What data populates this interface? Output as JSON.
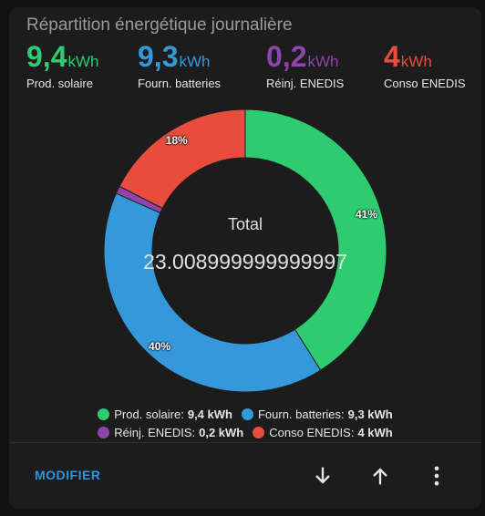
{
  "card": {
    "title": "Répartition énergétique journalière"
  },
  "stats": [
    {
      "value": "9,4",
      "unit": "kWh",
      "label": "Prod. solaire",
      "color": "#2ecc71"
    },
    {
      "value": "9,3",
      "unit": "kWh",
      "label": "Fourn. batteries",
      "color": "#3498db"
    },
    {
      "value": "0,2",
      "unit": "kWh",
      "label": "Réinj. ENEDIS",
      "color": "#8e44ad"
    },
    {
      "value": "4",
      "unit": "kWh",
      "label": "Conso ENEDIS",
      "color": "#e74c3c"
    }
  ],
  "chart_data": {
    "type": "pie",
    "categories": [
      "Prod. solaire",
      "Fourn. batteries",
      "Réinj. ENEDIS",
      "Conso ENEDIS"
    ],
    "values": [
      9.4,
      9.3,
      0.2,
      4
    ],
    "colors": [
      "#2ecc71",
      "#3498db",
      "#8e44ad",
      "#e74c3c"
    ],
    "percent_labels": [
      "41%",
      "40%",
      "",
      "18%"
    ],
    "center_title": "Total",
    "center_value": "23.008999999999997"
  },
  "legend": [
    {
      "name": "Prod. solaire:",
      "value": "9,4 kWh",
      "color": "#2ecc71"
    },
    {
      "name": "Fourn. batteries:",
      "value": "9,3 kWh",
      "color": "#3498db"
    },
    {
      "name": "Réinj. ENEDIS:",
      "value": "0,2 kWh",
      "color": "#8e44ad"
    },
    {
      "name": "Conso ENEDIS:",
      "value": "4 kWh",
      "color": "#e74c3c"
    }
  ],
  "actions": {
    "modify_label": "MODIFIER",
    "icons": [
      "arrow-down-icon",
      "arrow-up-icon",
      "more-vertical-icon"
    ]
  }
}
